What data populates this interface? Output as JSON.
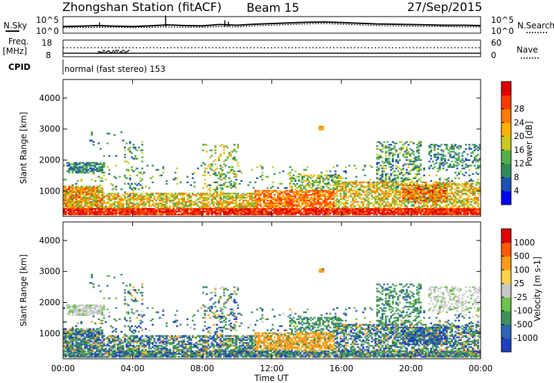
{
  "header": {
    "station": "Zhongshan Station (fitACF)",
    "beam": "Beam 15",
    "date": "27/Sep/2015"
  },
  "noise_panel": {
    "left_label": "N.Sky",
    "right_label": "N.Search",
    "left_ticks": [
      "10^5",
      "10^0"
    ],
    "right_ticks": [
      "10^5",
      "10^0"
    ],
    "sky_level": [
      2.0,
      2.1,
      2.3,
      2.1,
      2.0,
      2.2,
      2.5,
      2.3,
      2.2,
      2.6,
      2.4,
      2.7,
      2.9,
      3.1,
      3.3,
      3.4,
      3.2,
      3.0,
      2.8,
      2.7,
      2.6,
      2.5,
      2.4,
      2.4,
      2.3
    ],
    "search_level": [
      1.7,
      1.7,
      1.8,
      1.8,
      1.7,
      1.8,
      1.9,
      1.8,
      1.8,
      2.0,
      1.9,
      2.2,
      2.4,
      2.6,
      2.8,
      2.9,
      2.7,
      2.5,
      2.3,
      2.2,
      2.1,
      2.0,
      2.0,
      1.9,
      1.9
    ]
  },
  "freq_panel": {
    "left_label": "Freq.",
    "left_unit": "[MHz]",
    "right_label": "Nave",
    "left_ticks": [
      "18",
      "8"
    ],
    "right_ticks": [
      "60",
      "0"
    ],
    "cpid_label": "CPID",
    "cpid_text": "normal (fast stereo) 153"
  },
  "x_axis": {
    "label": "Time UT",
    "ticks": [
      "00:00",
      "04:00",
      "08:00",
      "12:00",
      "16:00",
      "20:00",
      "00:00"
    ]
  },
  "chart_data": [
    {
      "type": "heatmap",
      "name": "power",
      "ylabel": "Slant Range [km]",
      "yticks": [
        "1000",
        "2000",
        "3000",
        "4000"
      ],
      "ylim": [
        180,
        4600
      ],
      "xlim": [
        0,
        24
      ],
      "colorbar_label": "Power [dB]",
      "colorbar_ticks": [
        "4",
        "8",
        "12",
        "16",
        "20",
        "24",
        "28"
      ],
      "colors": [
        "#0000ff",
        "#1e4fb4",
        "#2f8a59",
        "#55b048",
        "#c9c922",
        "#ffb000",
        "#ff7a00",
        "#ff3a00",
        "#e00000"
      ]
    },
    {
      "type": "heatmap",
      "name": "velocity",
      "ylabel": "Slant Range [km]",
      "yticks": [
        "1000",
        "2000",
        "3000",
        "4000"
      ],
      "ylim": [
        180,
        4600
      ],
      "xlim": [
        0,
        24
      ],
      "colorbar_label": "Velocity [m s-1]",
      "colorbar_ticks": [
        "1000",
        "500",
        "100",
        "25",
        "-25",
        "-100",
        "-500",
        "-1000"
      ],
      "colors": [
        "#1f3fbf",
        "#2a64b5",
        "#3f8f5a",
        "#6cc24a",
        "#c8c8c8",
        "#ffd24a",
        "#ff9a1a",
        "#ff5a00",
        "#e00000"
      ]
    }
  ]
}
